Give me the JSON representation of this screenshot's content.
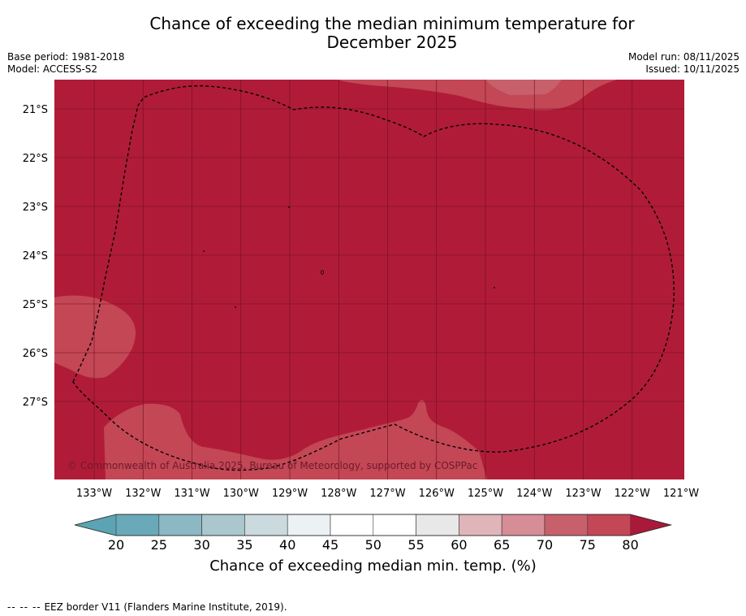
{
  "title": "Chance of exceeding the median minimum temperature for December 2025",
  "title_line1": "Chance of exceeding the median minimum temperature for",
  "title_line2": "December 2025",
  "meta_left": {
    "base_period": "Base period: 1981-2018",
    "model": "Model: ACCESS-S2"
  },
  "meta_right": {
    "model_run": "Model run: 08/11/2025",
    "issued": "Issued: 10/11/2025"
  },
  "map": {
    "latitudes": [
      "21°S",
      "22°S",
      "23°S",
      "24°S",
      "25°S",
      "26°S",
      "27°S"
    ],
    "longitudes": [
      "133°W",
      "132°W",
      "131°W",
      "130°W",
      "129°W",
      "128°W",
      "127°W",
      "126°W",
      "125°W",
      "124°W",
      "123°W",
      "122°W",
      "121°W"
    ],
    "copyright": "© Commonwealth of Australia 2025, Bureau of Meteorology, supported by COSPPac",
    "colors": {
      "c80": "#b01c38",
      "c75": "#c34755",
      "c70": "#c8606b",
      "grid": "#6f0d21",
      "eez": "#000000"
    }
  },
  "colorbar": {
    "ticks": [
      "20",
      "25",
      "30",
      "35",
      "40",
      "45",
      "50",
      "55",
      "60",
      "65",
      "70",
      "75",
      "80"
    ],
    "colors": [
      "#6aa9b9",
      "#8bb8c3",
      "#a9c7cd",
      "#cbdade",
      "#ecf1f3",
      "#ffffff",
      "#ffffff",
      "#e8e8e8",
      "#e0b5ba",
      "#d68d96",
      "#c8606b",
      "#c34755"
    ],
    "under_color": "#5ca4b4",
    "over_color": "#a8193a",
    "label": "Chance of exceeding median min. temp. (%)"
  },
  "footnote": {
    "symbol": "--  --  --",
    "text": "EEZ border V11 (Flanders Marine Institute, 2019)."
  }
}
